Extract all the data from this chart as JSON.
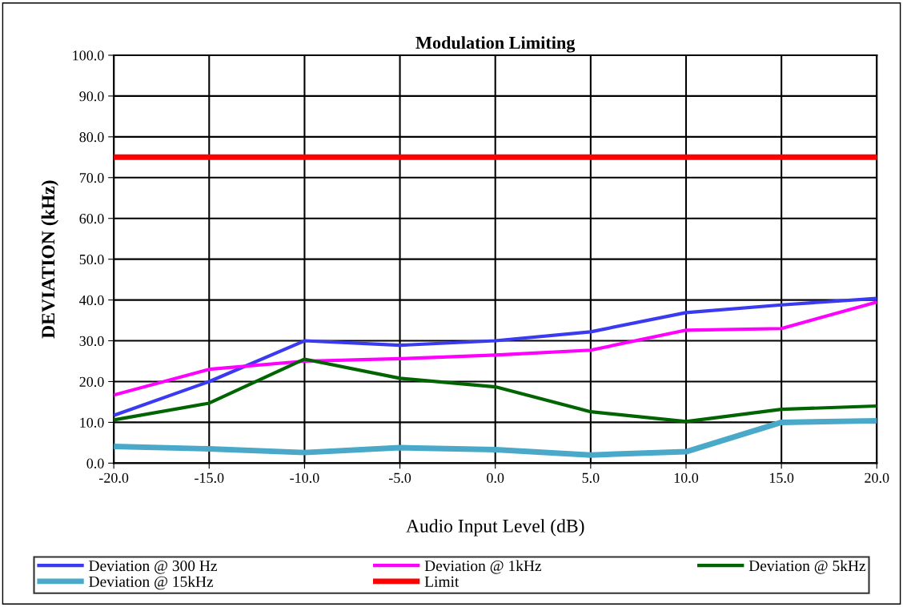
{
  "chart_data": {
    "type": "line",
    "title": "Modulation Limiting",
    "xlabel": "Audio Input Level (dB)",
    "ylabel": "DEVIATION (kHz)",
    "x": [
      -20,
      -15,
      -10,
      -5,
      0,
      5,
      10,
      15,
      20
    ],
    "series": [
      {
        "name": "Deviation @ 300 Hz",
        "color": "#3a3af0",
        "values": [
          11.7,
          20.0,
          30.0,
          28.9,
          30.0,
          32.2,
          36.9,
          38.8,
          40.4
        ]
      },
      {
        "name": "Deviation @ 1kHz",
        "color": "#ff00ff",
        "values": [
          16.7,
          23.0,
          25.0,
          25.6,
          26.5,
          27.7,
          32.6,
          33.0,
          39.5
        ]
      },
      {
        "name": "Deviation @ 5kHz",
        "color": "#006400",
        "values": [
          10.6,
          14.7,
          25.5,
          20.8,
          18.7,
          12.6,
          10.2,
          13.2,
          14.0
        ]
      },
      {
        "name": "Deviation @ 15kHz",
        "color": "#4aa8c8",
        "values": [
          4.1,
          3.5,
          2.6,
          3.8,
          3.3,
          2.0,
          2.8,
          10.0,
          10.4
        ]
      },
      {
        "name": "Limit",
        "color": "#ff0000",
        "values": [
          75,
          75,
          75,
          75,
          75,
          75,
          75,
          75,
          75
        ]
      }
    ],
    "xlim": [
      -20,
      20
    ],
    "ylim": [
      0,
      100
    ],
    "xticks": [
      {
        "value": -20,
        "label": "-20.0"
      },
      {
        "value": -15,
        "label": "-15.0"
      },
      {
        "value": -10,
        "label": "-10.0"
      },
      {
        "value": -5,
        "label": "-5.0"
      },
      {
        "value": 0,
        "label": "0.0"
      },
      {
        "value": 5,
        "label": "5.0"
      },
      {
        "value": 10,
        "label": "10.0"
      },
      {
        "value": 15,
        "label": "15.0"
      },
      {
        "value": 20,
        "label": "20.0"
      }
    ],
    "yticks": [
      {
        "value": 0,
        "label": "0.0"
      },
      {
        "value": 10,
        "label": "10.0"
      },
      {
        "value": 20,
        "label": "20.0"
      },
      {
        "value": 30,
        "label": "30.0"
      },
      {
        "value": 40,
        "label": "40.0"
      },
      {
        "value": 50,
        "label": "50.0"
      },
      {
        "value": 60,
        "label": "60.0"
      },
      {
        "value": 70,
        "label": "70.0"
      },
      {
        "value": 80,
        "label": "80.0"
      },
      {
        "value": 90,
        "label": "90.0"
      },
      {
        "value": 100,
        "label": "100.0"
      }
    ],
    "grid": true,
    "legend": "bottom",
    "marker": "none",
    "line_style": "solid"
  }
}
